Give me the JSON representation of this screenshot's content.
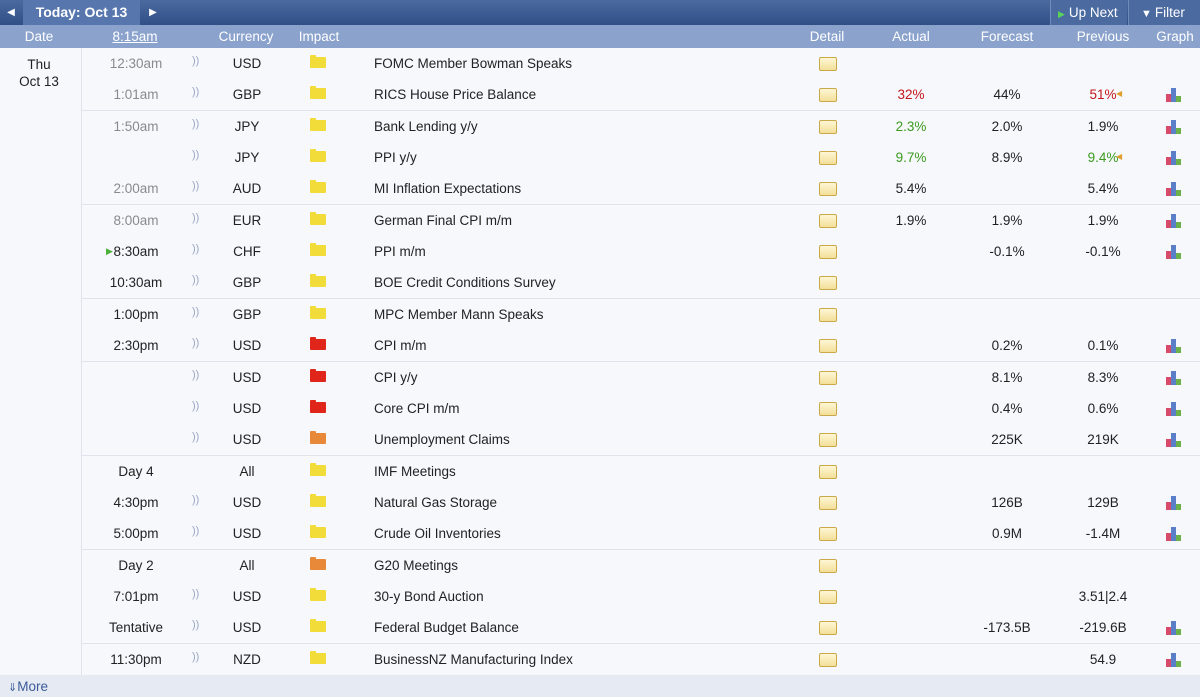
{
  "toolbar": {
    "today": "Today: Oct 13",
    "up_next": "Up Next",
    "filter": "Filter"
  },
  "columns": {
    "date": "Date",
    "time": "8:15am",
    "currency": "Currency",
    "impact": "Impact",
    "detail": "Detail",
    "actual": "Actual",
    "forecast": "Forecast",
    "previous": "Previous",
    "graph": "Graph"
  },
  "day": {
    "weekday": "Thu",
    "date": "Oct 13"
  },
  "rows": [
    {
      "time": "12:30am",
      "past": true,
      "currency": "USD",
      "impact": "yellow",
      "event": "FOMC Member Bowman Speaks"
    },
    {
      "time": "1:01am",
      "past": true,
      "currency": "GBP",
      "impact": "yellow",
      "event": "RICS House Price Balance",
      "actual": "32%",
      "actual_color": "red",
      "forecast": "44%",
      "previous": "51%",
      "previous_color": "red",
      "revised": true,
      "graph": true
    },
    {
      "time": "1:50am",
      "past": true,
      "currency": "JPY",
      "impact": "yellow",
      "event": "Bank Lending y/y",
      "actual": "2.3%",
      "actual_color": "green",
      "forecast": "2.0%",
      "previous": "1.9%",
      "graph": true
    },
    {
      "currency": "JPY",
      "impact": "yellow",
      "event": "PPI y/y",
      "actual": "9.7%",
      "actual_color": "green",
      "forecast": "8.9%",
      "previous": "9.4%",
      "previous_color": "green",
      "revised": true,
      "graph": true
    },
    {
      "time": "2:00am",
      "past": true,
      "currency": "AUD",
      "impact": "yellow",
      "event": "MI Inflation Expectations",
      "actual": "5.4%",
      "previous": "5.4%",
      "graph": true
    },
    {
      "time": "8:00am",
      "past": true,
      "currency": "EUR",
      "impact": "yellow",
      "event": "German Final CPI m/m",
      "actual": "1.9%",
      "forecast": "1.9%",
      "previous": "1.9%",
      "graph": true
    },
    {
      "time": "8:30am",
      "next": true,
      "currency": "CHF",
      "impact": "yellow",
      "event": "PPI m/m",
      "forecast": "-0.1%",
      "previous": "-0.1%",
      "graph": true
    },
    {
      "time": "10:30am",
      "currency": "GBP",
      "impact": "yellow",
      "event": "BOE Credit Conditions Survey"
    },
    {
      "time": "1:00pm",
      "currency": "GBP",
      "impact": "yellow",
      "event": "MPC Member Mann Speaks"
    },
    {
      "time": "2:30pm",
      "currency": "USD",
      "impact": "red",
      "event": "CPI m/m",
      "forecast": "0.2%",
      "previous": "0.1%",
      "graph": true
    },
    {
      "currency": "USD",
      "impact": "red",
      "event": "CPI y/y",
      "forecast": "8.1%",
      "previous": "8.3%",
      "graph": true
    },
    {
      "currency": "USD",
      "impact": "red",
      "event": "Core CPI m/m",
      "forecast": "0.4%",
      "previous": "0.6%",
      "graph": true
    },
    {
      "currency": "USD",
      "impact": "orange",
      "event": "Unemployment Claims",
      "forecast": "225K",
      "previous": "219K",
      "graph": true
    },
    {
      "time": "Day 4",
      "currency": "All",
      "impact": "yellow",
      "event": "IMF Meetings"
    },
    {
      "time": "4:30pm",
      "currency": "USD",
      "impact": "yellow",
      "event": "Natural Gas Storage",
      "forecast": "126B",
      "previous": "129B",
      "graph": true
    },
    {
      "time": "5:00pm",
      "currency": "USD",
      "impact": "yellow",
      "event": "Crude Oil Inventories",
      "forecast": "0.9M",
      "previous": "-1.4M",
      "graph": true
    },
    {
      "time": "Day 2",
      "currency": "All",
      "impact": "orange",
      "event": "G20 Meetings"
    },
    {
      "time": "7:01pm",
      "currency": "USD",
      "impact": "yellow",
      "event": "30-y Bond Auction",
      "previous": "3.51|2.4"
    },
    {
      "time": "Tentative",
      "currency": "USD",
      "impact": "yellow",
      "event": "Federal Budget Balance",
      "forecast": "-173.5B",
      "previous": "-219.6B",
      "graph": true
    },
    {
      "time": "11:30pm",
      "currency": "NZD",
      "impact": "yellow",
      "event": "BusinessNZ Manufacturing Index",
      "previous": "54.9",
      "graph": true
    }
  ],
  "footer": {
    "more": "More"
  }
}
